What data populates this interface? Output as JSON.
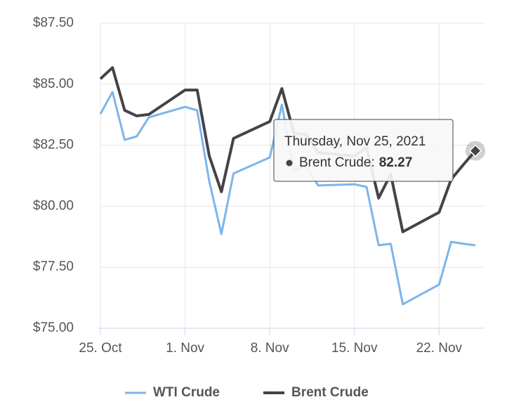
{
  "chart_data": {
    "type": "line",
    "x": [
      "2021-10-25",
      "2021-10-26",
      "2021-10-27",
      "2021-10-28",
      "2021-10-29",
      "2021-11-01",
      "2021-11-02",
      "2021-11-03",
      "2021-11-04",
      "2021-11-05",
      "2021-11-08",
      "2021-11-09",
      "2021-11-10",
      "2021-11-11",
      "2021-11-12",
      "2021-11-15",
      "2021-11-16",
      "2021-11-17",
      "2021-11-18",
      "2021-11-19",
      "2021-11-22",
      "2021-11-23",
      "2021-11-24",
      "2021-11-25"
    ],
    "series": [
      {
        "name": "WTI Crude",
        "color": "#7cb5ec",
        "values": [
          83.78,
          84.68,
          82.72,
          82.86,
          83.64,
          84.07,
          83.93,
          81.02,
          78.86,
          81.34,
          82.0,
          84.16,
          81.45,
          81.65,
          80.85,
          80.9,
          80.79,
          78.4,
          78.46,
          75.98,
          76.79,
          78.54,
          78.46,
          78.4
        ]
      },
      {
        "name": "Brent Crude",
        "color": "#434348",
        "values": [
          85.22,
          85.68,
          83.93,
          83.7,
          83.76,
          84.76,
          84.76,
          82.06,
          80.59,
          82.78,
          83.47,
          84.82,
          82.98,
          82.95,
          82.2,
          82.05,
          82.4,
          80.33,
          81.31,
          78.95,
          79.75,
          81.1,
          81.7,
          82.27
        ]
      }
    ],
    "xlim": [
      "2021-10-25",
      "2021-11-25"
    ],
    "xticks": [
      {
        "value": "2021-10-25",
        "label": "25. Oct"
      },
      {
        "value": "2021-11-01",
        "label": "1. Nov"
      },
      {
        "value": "2021-11-08",
        "label": "8. Nov"
      },
      {
        "value": "2021-11-15",
        "label": "15. Nov"
      },
      {
        "value": "2021-11-22",
        "label": "22. Nov"
      }
    ],
    "ylim": [
      75,
      87.5
    ],
    "yticks": [
      {
        "value": 75,
        "label": "$75.00"
      },
      {
        "value": 77.5,
        "label": "$77.50"
      },
      {
        "value": 80,
        "label": "$80.00"
      },
      {
        "value": 82.5,
        "label": "$82.50"
      },
      {
        "value": 85,
        "label": "$85.00"
      },
      {
        "value": 87.5,
        "label": "$87.50"
      }
    ],
    "grid": true,
    "tooltip": {
      "header": "Thursday, Nov 25, 2021",
      "label": "Brent Crude:",
      "value": 82.27
    }
  }
}
